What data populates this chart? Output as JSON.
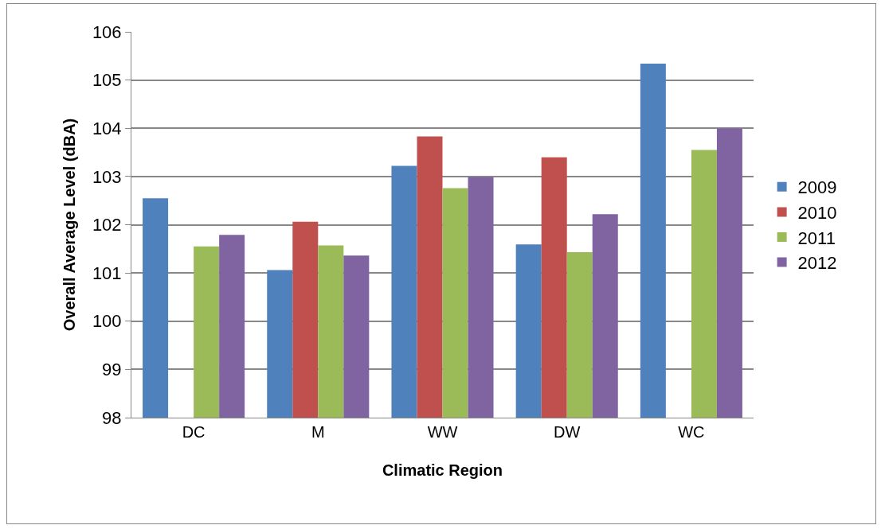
{
  "chart_data": {
    "type": "bar",
    "xlabel": "Climatic Region",
    "ylabel": "Overall Average Level (dBA)",
    "categories": [
      "DC",
      "M",
      "WW",
      "DW",
      "WC"
    ],
    "series": [
      {
        "name": "2009",
        "color": "#4f81bd",
        "values": [
          102.55,
          101.06,
          103.22,
          101.59,
          105.34
        ]
      },
      {
        "name": "2010",
        "color": "#c0504d",
        "values": [
          null,
          102.06,
          103.83,
          103.4,
          null
        ]
      },
      {
        "name": "2011",
        "color": "#9bbb59",
        "values": [
          101.55,
          101.57,
          102.76,
          101.43,
          103.55
        ]
      },
      {
        "name": "2012",
        "color": "#8064a2",
        "values": [
          101.79,
          101.36,
          102.99,
          102.22,
          104.0
        ]
      }
    ],
    "ylim": [
      98,
      106
    ],
    "yticks": [
      98,
      99,
      100,
      101,
      102,
      103,
      104,
      105,
      106
    ],
    "grid": "y",
    "legend": "right"
  }
}
